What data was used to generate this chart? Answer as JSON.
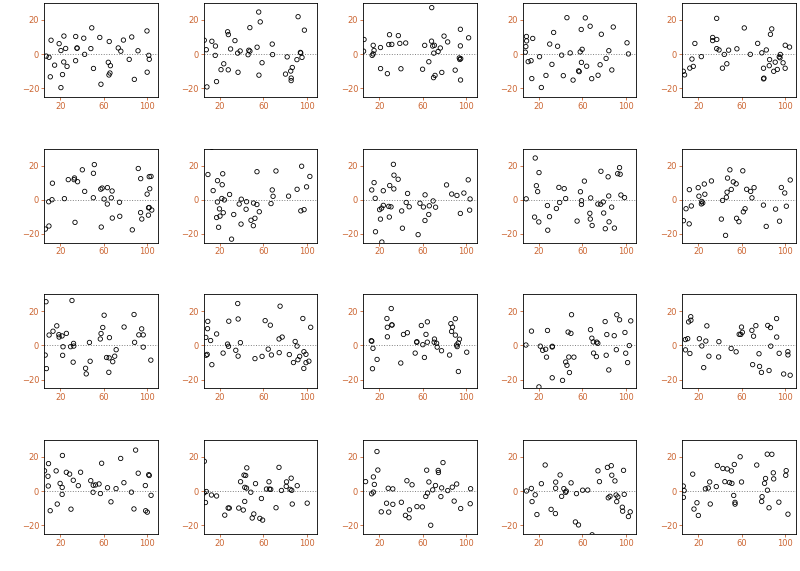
{
  "n_plots": 20,
  "n_cols": 5,
  "n_rows": 4,
  "n_points": 40,
  "x_range": [
    5,
    110
  ],
  "y_range": [
    -25,
    30
  ],
  "x_ticks": [
    20,
    60,
    100
  ],
  "y_ticks": [
    -20,
    0,
    20
  ],
  "tick_color": "#CC6633",
  "smooth_color": "#E8747A",
  "point_color": "black",
  "bg_color": "white",
  "seed": 42
}
